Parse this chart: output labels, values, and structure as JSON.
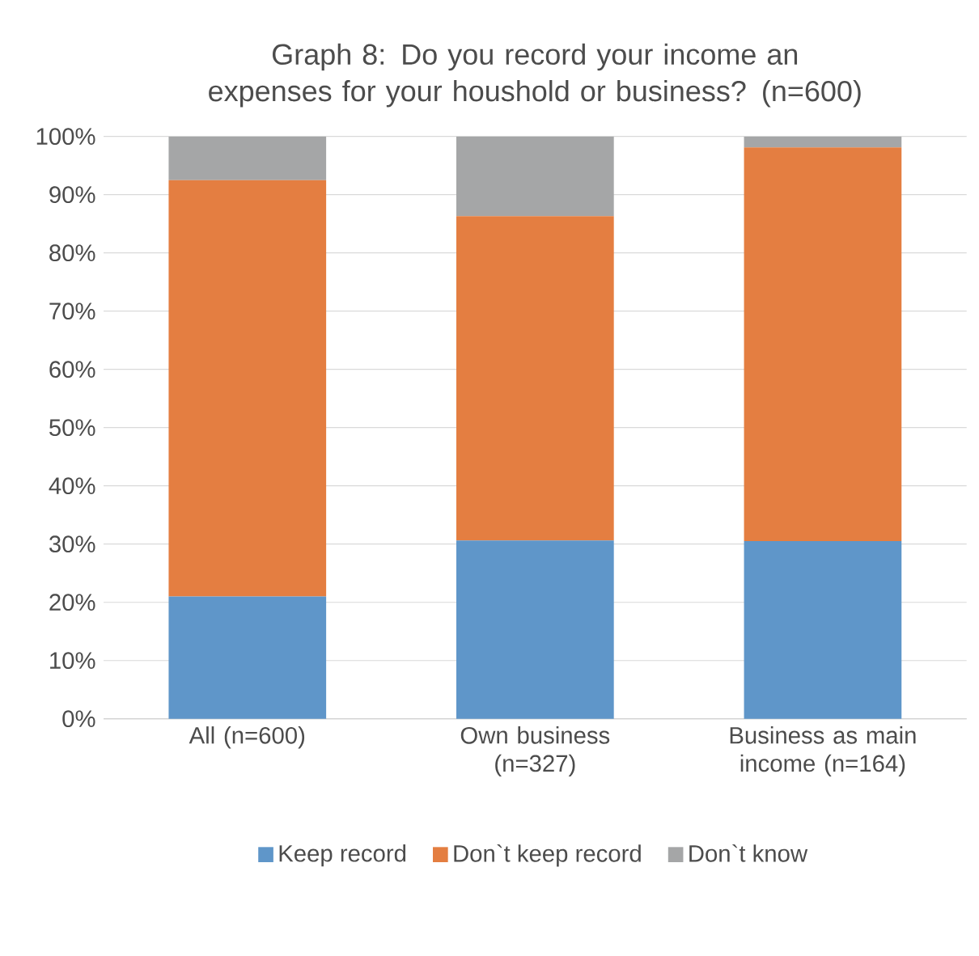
{
  "chart_data": {
    "type": "bar",
    "stacked": true,
    "title": "Graph 8: Do you record your income an expenses for your houshold or business? (n=600)",
    "categories": [
      "All (n=600)",
      "Own business (n=327)",
      "Business as main income (n=164)"
    ],
    "series": [
      {
        "name": "Keep record",
        "color": "#5f96c9",
        "values": [
          21.0,
          30.6,
          30.5
        ]
      },
      {
        "name": "Don`t keep record",
        "color": "#e47e41",
        "values": [
          71.5,
          55.7,
          67.6
        ]
      },
      {
        "name": "Don`t know",
        "color": "#a5a6a7",
        "values": [
          7.5,
          13.7,
          1.9
        ]
      }
    ],
    "ylim": [
      0,
      100
    ],
    "yticks": [
      {
        "value": 0,
        "label": "0%"
      },
      {
        "value": 10,
        "label": "10%"
      },
      {
        "value": 20,
        "label": "20%"
      },
      {
        "value": 30,
        "label": "30%"
      },
      {
        "value": 40,
        "label": "40%"
      },
      {
        "value": 50,
        "label": "50%"
      },
      {
        "value": 60,
        "label": "60%"
      },
      {
        "value": 70,
        "label": "70%"
      },
      {
        "value": 80,
        "label": "80%"
      },
      {
        "value": 90,
        "label": "90%"
      },
      {
        "value": 100,
        "label": "100%"
      }
    ],
    "grid": "y",
    "legend": "bottom"
  }
}
